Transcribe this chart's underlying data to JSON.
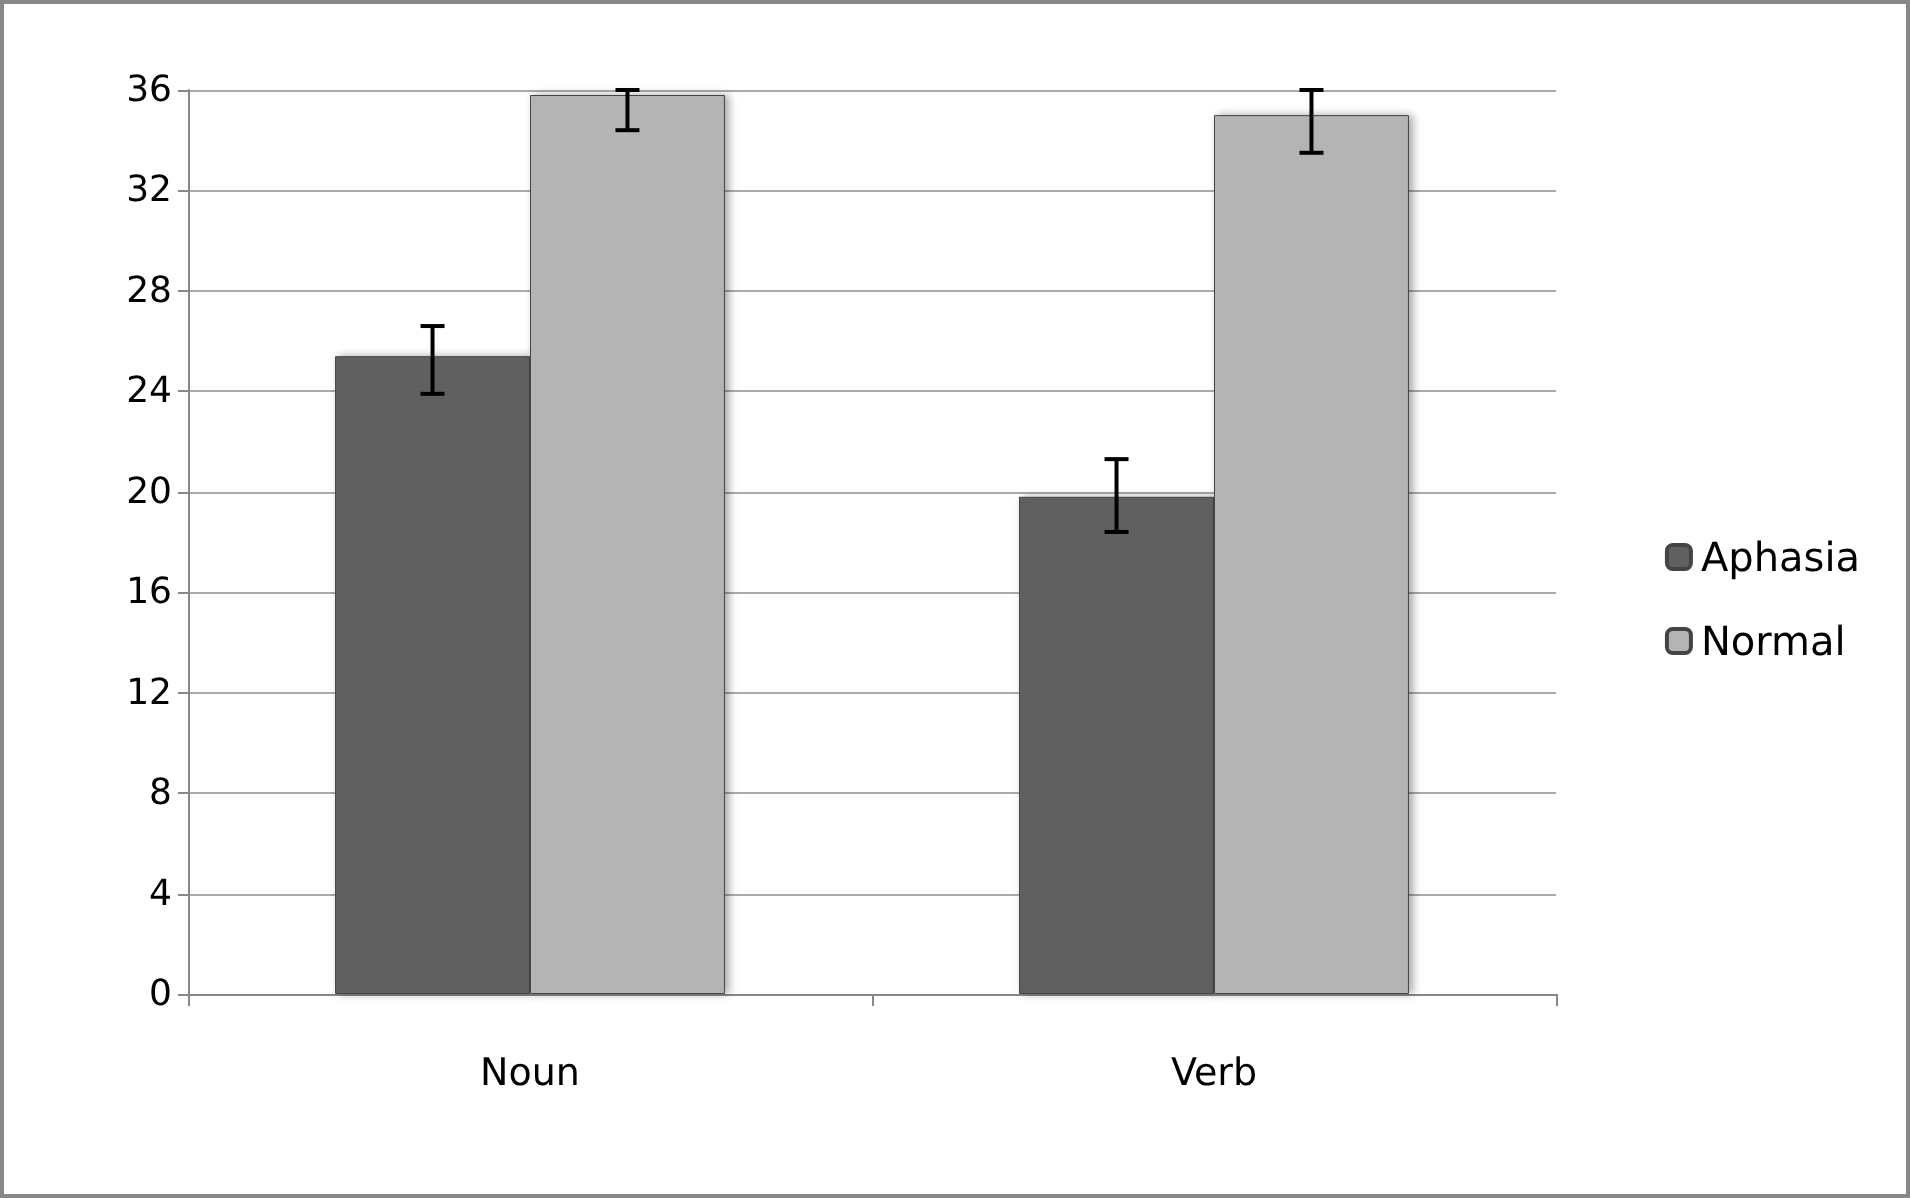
{
  "chart_data": {
    "type": "bar",
    "categories": [
      "Noun",
      "Verb"
    ],
    "series": [
      {
        "name": "Aphasia",
        "color": "#606060",
        "values": [
          25.4,
          19.8
        ],
        "errors": [
          [
            23.9,
            26.6
          ],
          [
            18.4,
            21.3
          ]
        ]
      },
      {
        "name": "Normal",
        "color": "#b4b4b4",
        "values": [
          35.8,
          35.0
        ],
        "errors": [
          [
            34.4,
            36
          ],
          [
            33.5,
            36
          ]
        ]
      }
    ],
    "ylim": [
      0,
      36
    ],
    "yticks": [
      0,
      4,
      8,
      12,
      16,
      20,
      24,
      28,
      32,
      36
    ],
    "grid": "y",
    "legend": "right"
  }
}
